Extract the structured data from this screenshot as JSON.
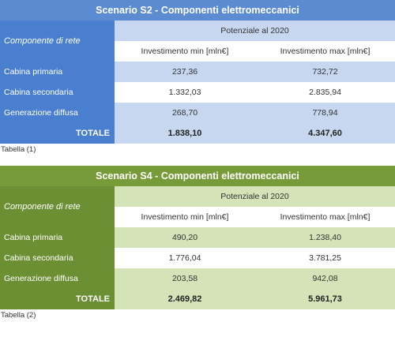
{
  "tables": [
    {
      "title": "Scenario S2 - Componenti elettromeccanici",
      "row_header": "Componente di rete",
      "group_header": "Potenziale al 2020",
      "col_min": "Investimento min [mln€]",
      "col_max": "Investimento max [mln€]",
      "rows": [
        {
          "label": "Cabina primaria",
          "min": "237,36",
          "max": "732,72"
        },
        {
          "label": "Cabina secondaria",
          "min": "1.332,03",
          "max": "2.835,94"
        },
        {
          "label": "Generazione diffusa",
          "min": "268,70",
          "max": "778,94"
        }
      ],
      "total_label": "TOTALE",
      "total_min": "1.838,10",
      "total_max": "4.347,60",
      "caption": "Tabella (1)",
      "accent_color": "#4a7fcf"
    },
    {
      "title": "Scenario S4 - Componenti elettromeccanici",
      "row_header": "Componente di rete",
      "group_header": "Potenziale al 2020",
      "col_min": "Investimento min [mln€]",
      "col_max": "Investimento max [mln€]",
      "rows": [
        {
          "label": "Cabina primaria",
          "min": "490,20",
          "max": "1.238,40"
        },
        {
          "label": "Cabina secondaria",
          "min": "1.776,04",
          "max": "3.781,25"
        },
        {
          "label": "Generazione diffusa",
          "min": "203,58",
          "max": "942,08"
        }
      ],
      "total_label": "TOTALE",
      "total_min": "2.469,82",
      "total_max": "5.961,73",
      "caption": "Tabella (2)",
      "accent_color": "#6d8f33"
    }
  ]
}
